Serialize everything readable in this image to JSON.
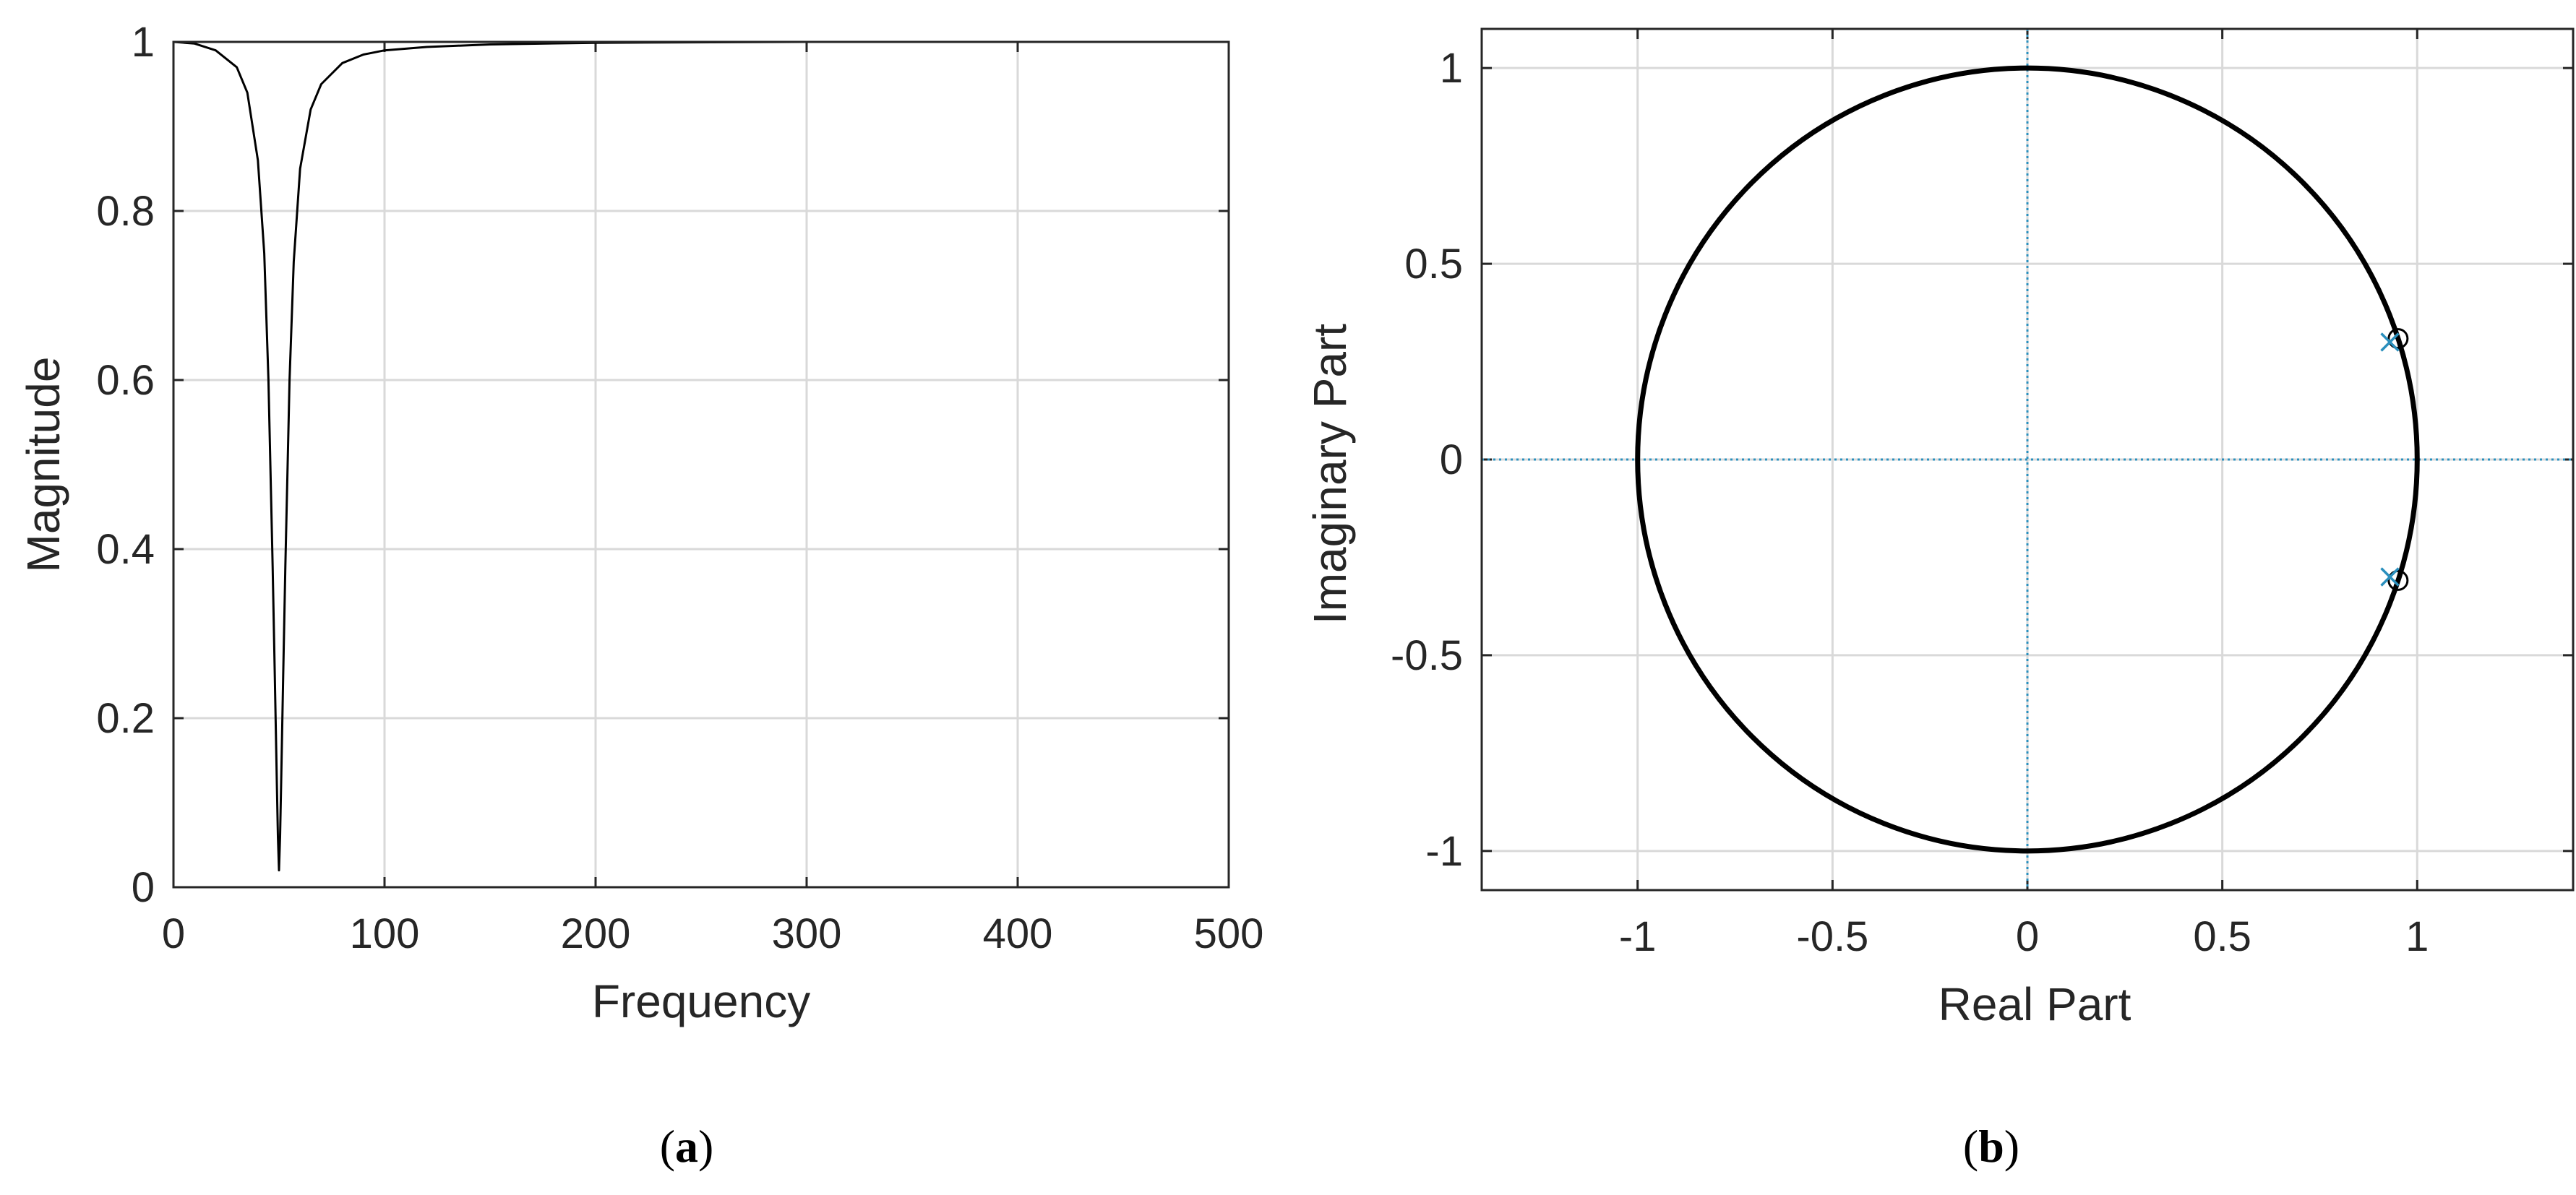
{
  "chart_data": [
    {
      "type": "line",
      "panel_label": "a",
      "xlabel": "Frequency",
      "ylabel": "Magnitude",
      "xlim": [
        0,
        500
      ],
      "ylim": [
        0,
        1
      ],
      "xticks": [
        "0",
        "100",
        "200",
        "300",
        "400",
        "500"
      ],
      "yticks": [
        "0",
        "0.2",
        "0.4",
        "0.6",
        "0.8",
        "1"
      ],
      "grid": true,
      "series": [
        {
          "color": "#000000",
          "x": [
            0,
            10,
            20,
            30,
            35,
            40,
            43,
            45,
            47,
            48,
            49,
            49.5,
            50,
            50.5,
            51,
            52,
            53,
            55,
            57,
            60,
            65,
            70,
            80,
            90,
            100,
            120,
            150,
            200,
            300,
            500
          ],
          "y": [
            1.0,
            0.998,
            0.99,
            0.97,
            0.94,
            0.86,
            0.75,
            0.6,
            0.38,
            0.25,
            0.12,
            0.06,
            0.02,
            0.06,
            0.12,
            0.25,
            0.38,
            0.6,
            0.74,
            0.85,
            0.92,
            0.95,
            0.975,
            0.985,
            0.99,
            0.994,
            0.997,
            0.999,
            1.0,
            1.0
          ]
        }
      ]
    },
    {
      "type": "scatter",
      "panel_label": "b",
      "xlabel": "Real Part",
      "ylabel": "Imaginary Part",
      "xlim": [
        -1.4,
        1.4
      ],
      "ylim": [
        -1.1,
        1.1
      ],
      "xticks": [
        "-1",
        "-0.5",
        "0",
        "0.5",
        "1"
      ],
      "yticks": [
        "-1",
        "-0.5",
        "0",
        "0.5",
        "1"
      ],
      "grid": true,
      "unit_circle": {
        "color": "#000000"
      },
      "reference_axes_color": "#2a8fbd",
      "zeros": {
        "marker": "circle",
        "color": "#000000",
        "points": [
          [
            0.951,
            0.309
          ],
          [
            0.951,
            -0.309
          ]
        ]
      },
      "poles": {
        "marker": "cross",
        "color": "#2a8fbd",
        "points": [
          [
            0.93,
            0.3
          ],
          [
            0.93,
            -0.3
          ]
        ]
      }
    }
  ]
}
